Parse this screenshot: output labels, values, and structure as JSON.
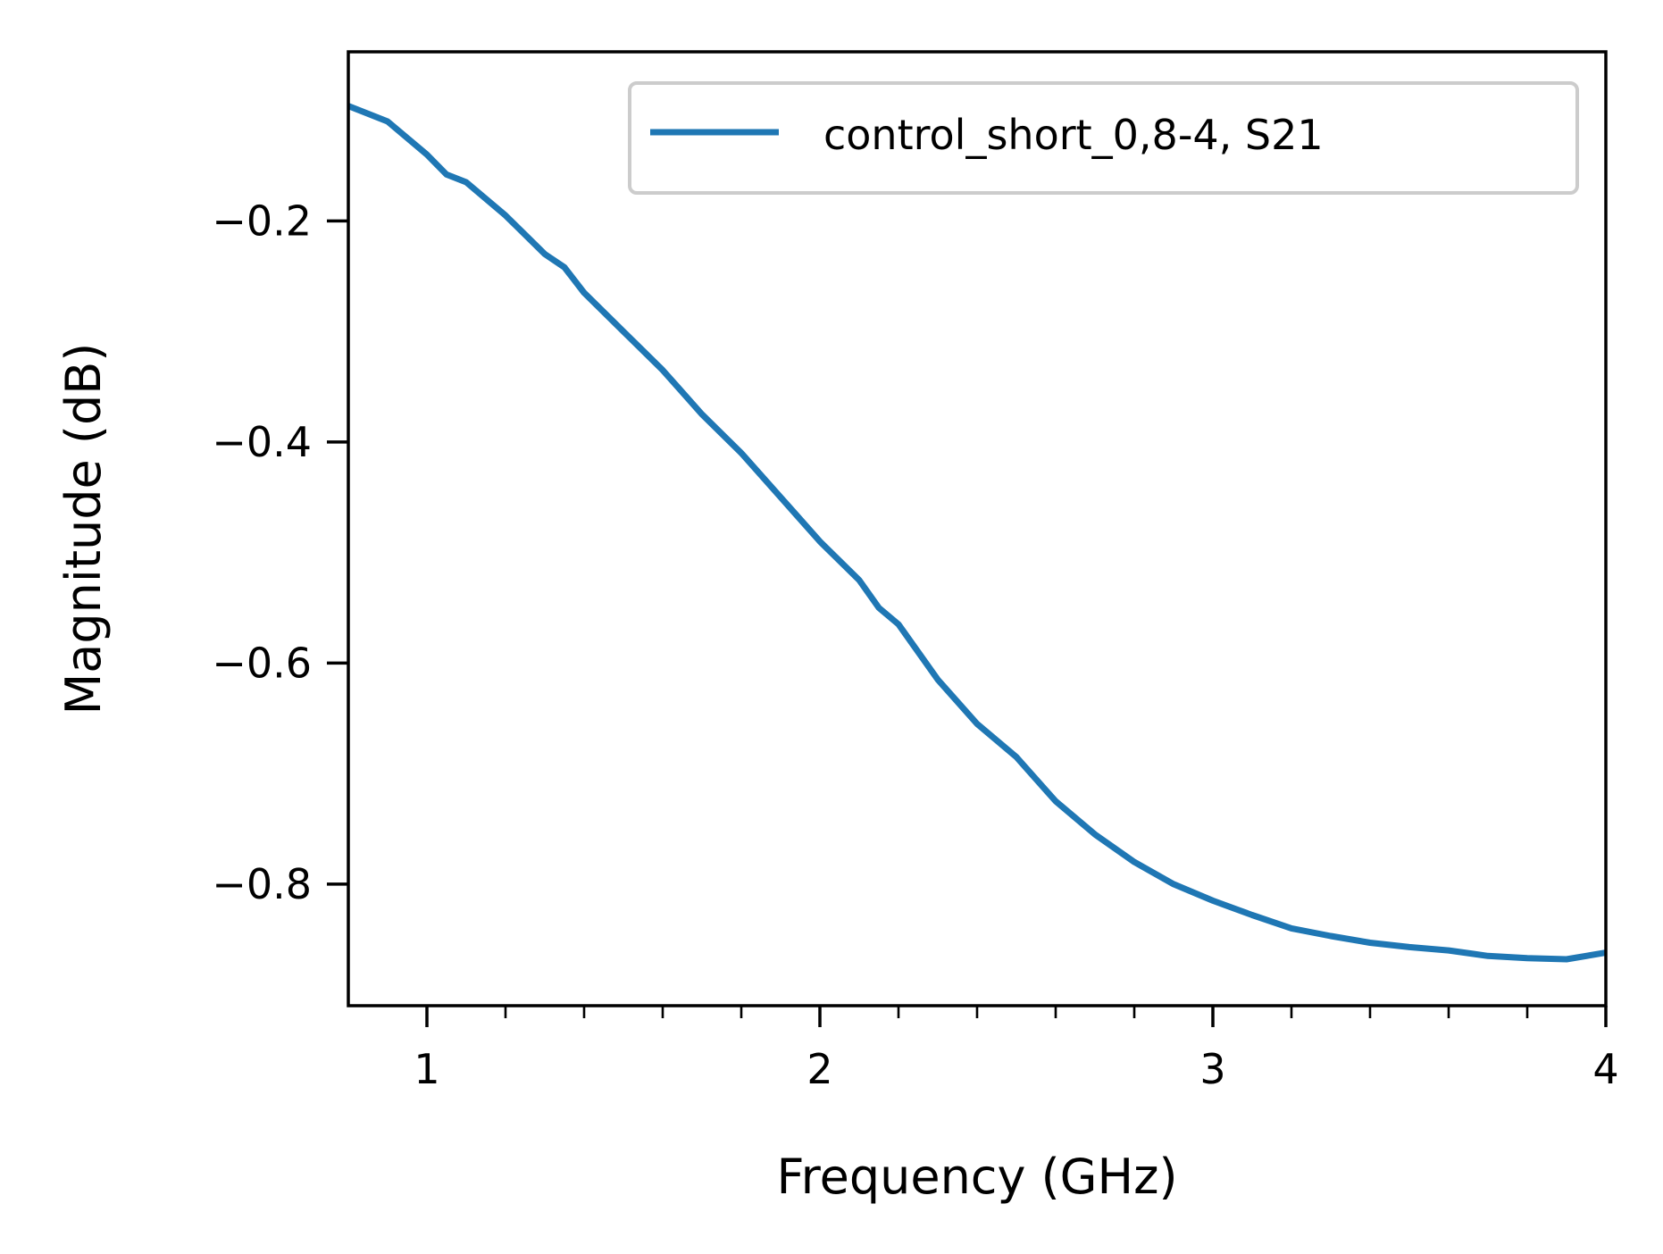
{
  "chart_data": {
    "type": "line",
    "title": "",
    "xlabel": "Frequency (GHz)",
    "ylabel": "Magnitude (dB)",
    "xlim": [
      0.8,
      4.0
    ],
    "ylim": [
      -0.91,
      -0.047
    ],
    "xticks": [
      1,
      2,
      3,
      4
    ],
    "xtick_labels": [
      "1",
      "2",
      "3",
      "4"
    ],
    "xminor_ticks": [
      1.2,
      1.4,
      1.6,
      1.8,
      2.2,
      2.4,
      2.6,
      2.8,
      3.2,
      3.4,
      3.6,
      3.8
    ],
    "yticks": [
      -0.2,
      -0.4,
      -0.6,
      -0.8
    ],
    "ytick_labels": [
      "−0.2",
      "−0.4",
      "−0.6",
      "−0.8"
    ],
    "grid": false,
    "legend_position": "top-right",
    "series": [
      {
        "name": "control_short_0,8-4, S21",
        "color": "#1f77b4",
        "x": [
          0.8,
          0.9,
          1.0,
          1.05,
          1.1,
          1.2,
          1.3,
          1.35,
          1.4,
          1.5,
          1.6,
          1.7,
          1.8,
          1.9,
          2.0,
          2.1,
          2.15,
          2.2,
          2.3,
          2.4,
          2.5,
          2.6,
          2.7,
          2.8,
          2.9,
          3.0,
          3.1,
          3.2,
          3.3,
          3.4,
          3.5,
          3.6,
          3.7,
          3.8,
          3.9,
          4.0
        ],
        "y": [
          -0.096,
          -0.11,
          -0.14,
          -0.158,
          -0.165,
          -0.195,
          -0.23,
          -0.242,
          -0.265,
          -0.3,
          -0.335,
          -0.375,
          -0.41,
          -0.45,
          -0.49,
          -0.525,
          -0.55,
          -0.565,
          -0.615,
          -0.655,
          -0.685,
          -0.725,
          -0.755,
          -0.78,
          -0.8,
          -0.815,
          -0.828,
          -0.84,
          -0.847,
          -0.853,
          -0.857,
          -0.86,
          -0.865,
          -0.867,
          -0.868,
          -0.862
        ]
      }
    ]
  }
}
